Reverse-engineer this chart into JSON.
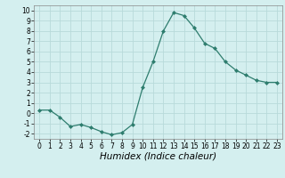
{
  "x": [
    0,
    1,
    2,
    3,
    4,
    5,
    6,
    7,
    8,
    9,
    10,
    11,
    12,
    13,
    14,
    15,
    16,
    17,
    18,
    19,
    20,
    21,
    22,
    23
  ],
  "y": [
    0.3,
    0.3,
    -0.4,
    -1.3,
    -1.1,
    -1.4,
    -1.8,
    -2.1,
    -1.9,
    -1.1,
    2.5,
    5.0,
    8.0,
    9.8,
    9.5,
    8.3,
    6.8,
    6.3,
    5.0,
    4.2,
    3.7,
    3.2,
    3.0,
    3.0
  ],
  "line_color": "#2e7d6e",
  "marker": "D",
  "marker_size": 2,
  "bg_color": "#d4efef",
  "grid_color": "#b8dada",
  "xlabel": "Humidex (Indice chaleur)",
  "xlabel_style": "italic",
  "xlim": [
    -0.5,
    23.5
  ],
  "ylim": [
    -2.5,
    10.5
  ],
  "yticks": [
    -2,
    -1,
    0,
    1,
    2,
    3,
    4,
    5,
    6,
    7,
    8,
    9,
    10
  ],
  "xticks": [
    0,
    1,
    2,
    3,
    4,
    5,
    6,
    7,
    8,
    9,
    10,
    11,
    12,
    13,
    14,
    15,
    16,
    17,
    18,
    19,
    20,
    21,
    22,
    23
  ],
  "tick_labelsize": 5.5,
  "xlabel_fontsize": 7.5
}
